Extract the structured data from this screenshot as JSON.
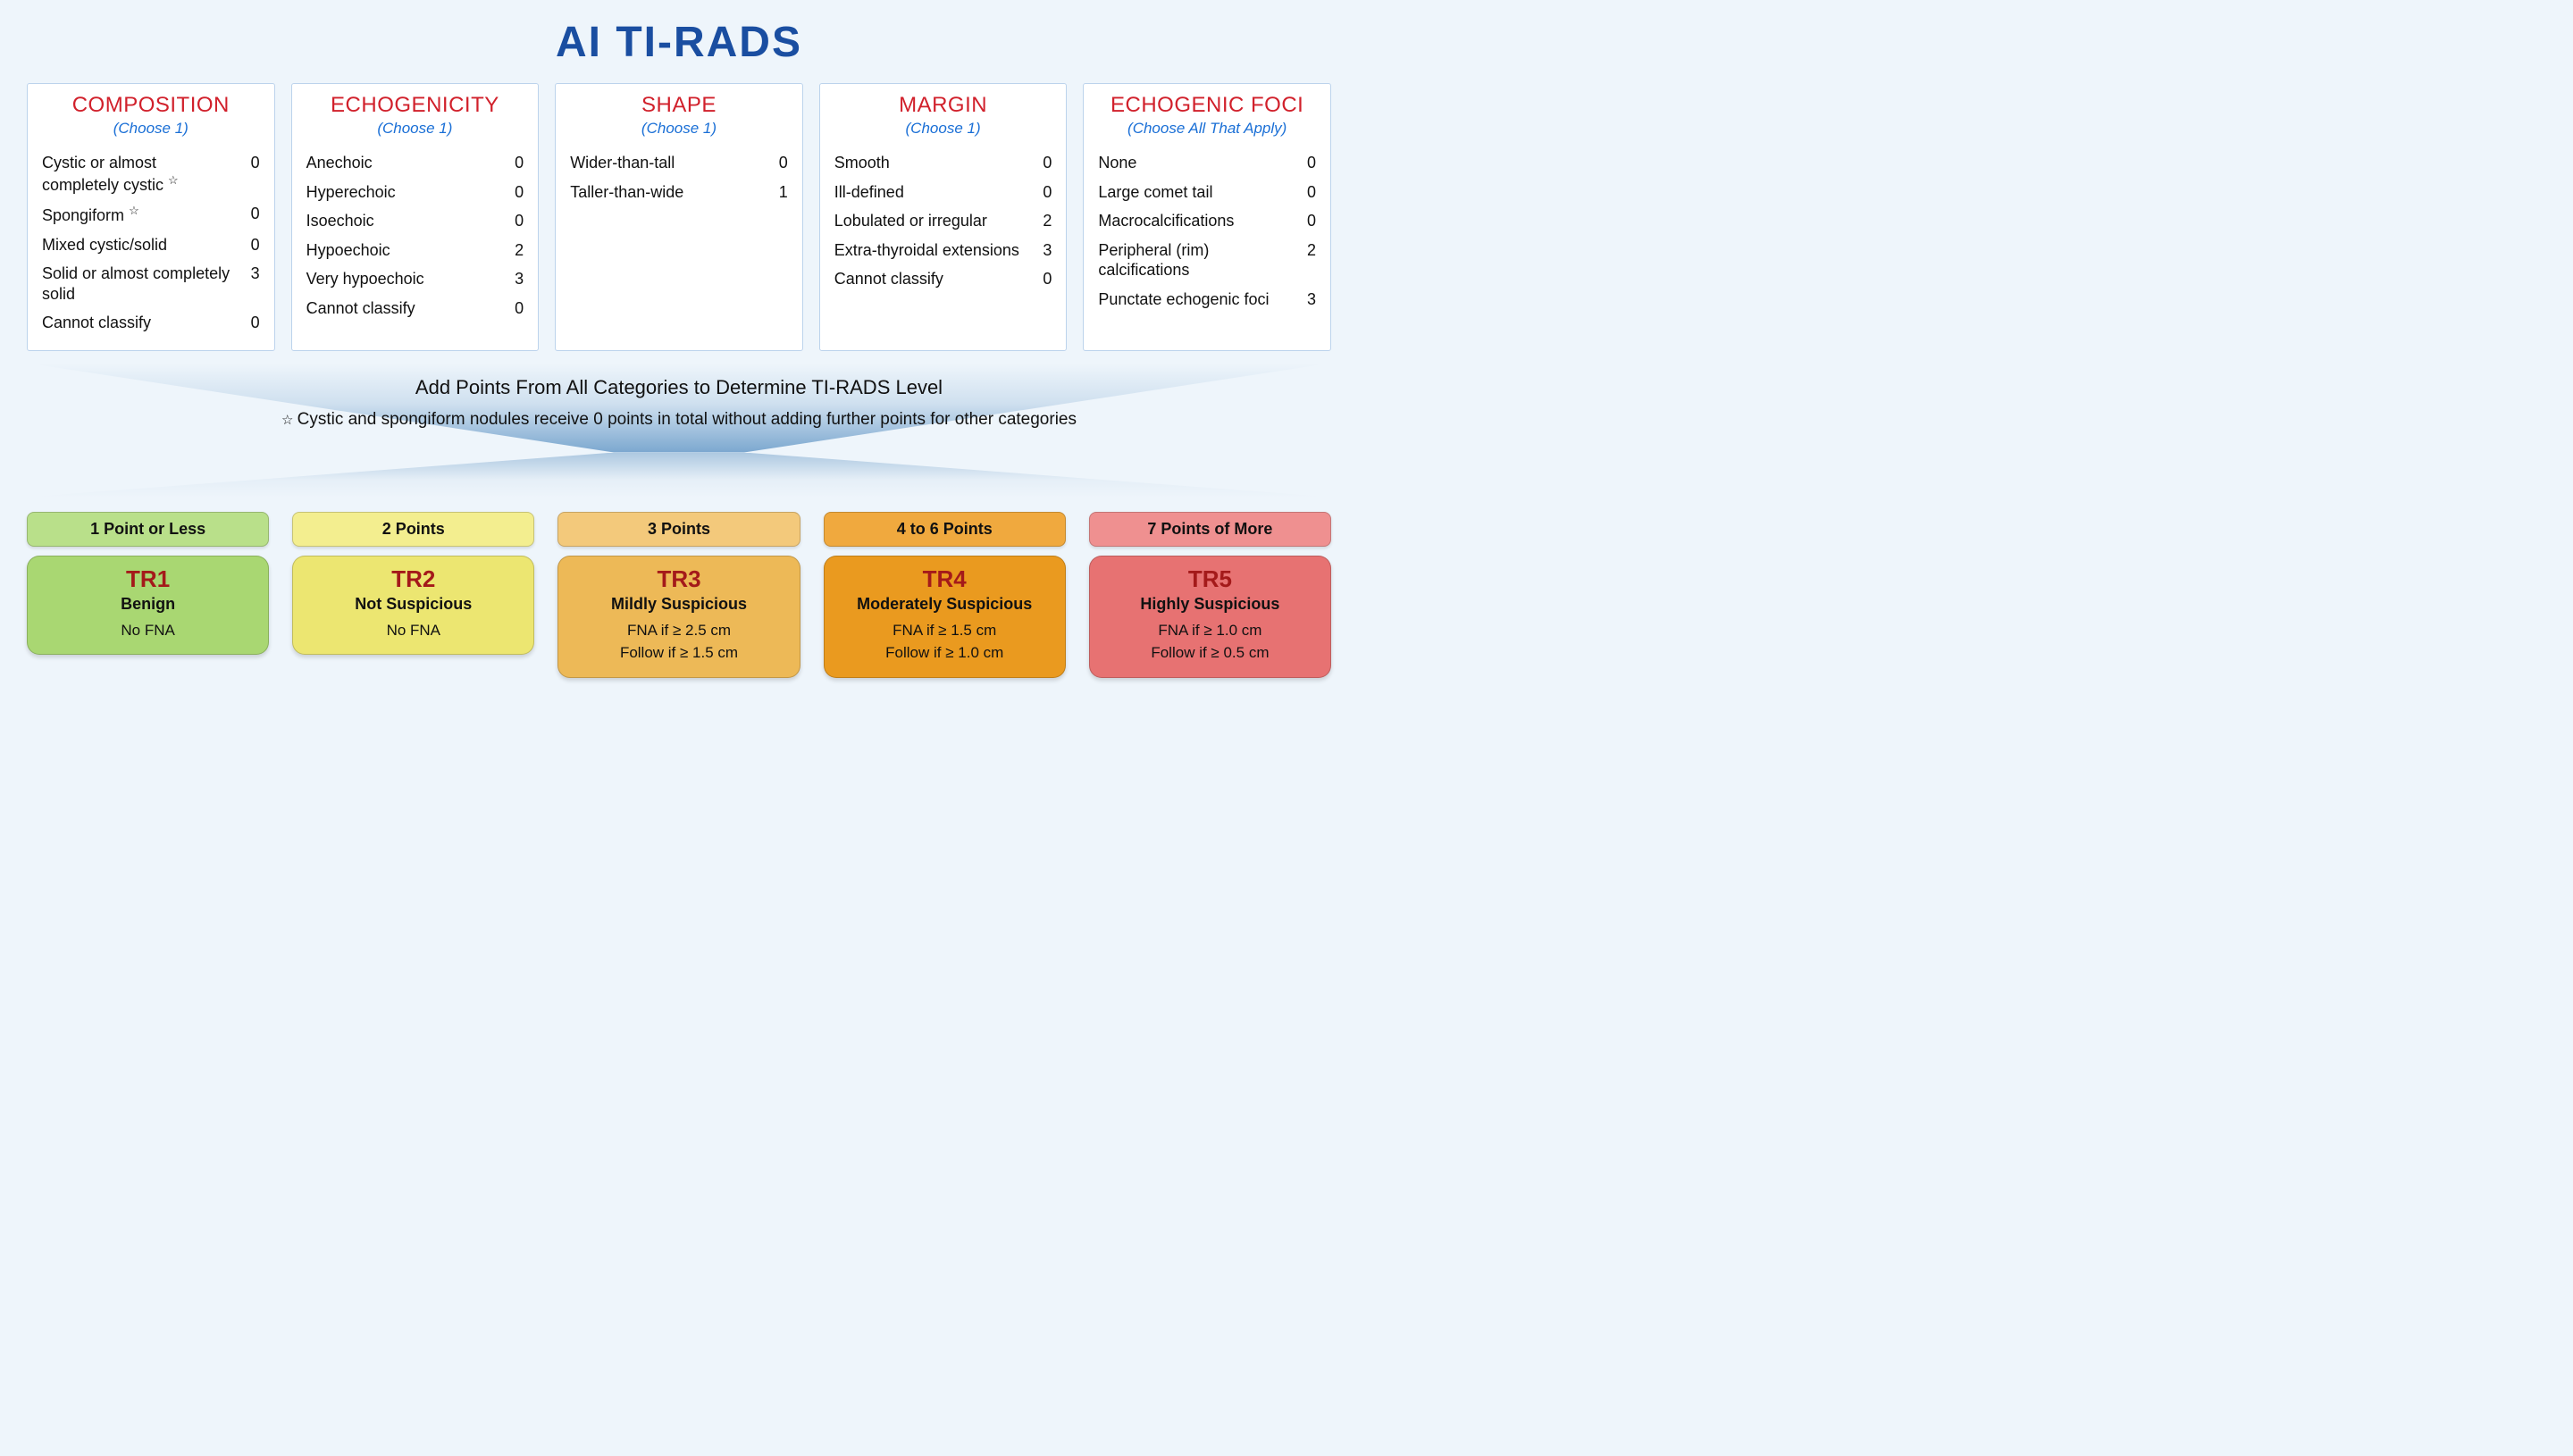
{
  "title": "AI TI-RADS",
  "colors": {
    "page_bg": "#eef5fb",
    "title_color": "#1a4ea1",
    "card_bg": "#ffffff",
    "card_border": "#bcd3ec",
    "card_title_color": "#d1202b",
    "card_sub_color": "#1a6fd6",
    "text_color": "#111111",
    "tr_code_color": "#a41a1a"
  },
  "cards": [
    {
      "title": "COMPOSITION",
      "sub": "(Choose 1)",
      "items": [
        {
          "label": "Cystic or almost completely cystic",
          "star": true,
          "pts": "0"
        },
        {
          "label": "Spongiform",
          "star": true,
          "pts": "0"
        },
        {
          "label": "Mixed cystic/solid",
          "star": false,
          "pts": "0"
        },
        {
          "label": "Solid or almost completely solid",
          "star": false,
          "pts": "3"
        },
        {
          "label": "Cannot classify",
          "star": false,
          "pts": "0"
        }
      ]
    },
    {
      "title": "ECHOGENICITY",
      "sub": "(Choose 1)",
      "items": [
        {
          "label": "Anechoic",
          "star": false,
          "pts": "0"
        },
        {
          "label": "Hyperechoic",
          "star": false,
          "pts": "0"
        },
        {
          "label": "Isoechoic",
          "star": false,
          "pts": "0"
        },
        {
          "label": "Hypoechoic",
          "star": false,
          "pts": "2"
        },
        {
          "label": "Very hypoechoic",
          "star": false,
          "pts": "3"
        },
        {
          "label": "Cannot classify",
          "star": false,
          "pts": "0"
        }
      ]
    },
    {
      "title": "SHAPE",
      "sub": "(Choose 1)",
      "items": [
        {
          "label": "Wider-than-tall",
          "star": false,
          "pts": "0"
        },
        {
          "label": "Taller-than-wide",
          "star": false,
          "pts": "1"
        }
      ]
    },
    {
      "title": "MARGIN",
      "sub": "(Choose 1)",
      "items": [
        {
          "label": "Smooth",
          "star": false,
          "pts": "0"
        },
        {
          "label": "Ill-defined",
          "star": false,
          "pts": "0"
        },
        {
          "label": "Lobulated or irregular",
          "star": false,
          "pts": "2"
        },
        {
          "label": "Extra-thyroidal extensions",
          "star": false,
          "pts": "3"
        },
        {
          "label": "Cannot classify",
          "star": false,
          "pts": "0"
        }
      ]
    },
    {
      "title": "ECHOGENIC FOCI",
      "sub": "(Choose All That Apply)",
      "items": [
        {
          "label": "None",
          "star": false,
          "pts": "0"
        },
        {
          "label": "Large comet tail",
          "star": false,
          "pts": "0"
        },
        {
          "label": "Macrocalcifications",
          "star": false,
          "pts": "0"
        },
        {
          "label": "Peripheral (rim) calcifications",
          "star": false,
          "pts": "2"
        },
        {
          "label": "Punctate echogenic foci",
          "star": false,
          "pts": "3"
        }
      ]
    }
  ],
  "funnel": {
    "headline": "Add Points From All Categories to Determine TI-RADS Level",
    "note_prefix": "☆ ",
    "note": "Cystic and spongiform nodules receive 0 points in total without adding further points for other categories"
  },
  "levels": [
    {
      "pill": "1 Point or Less",
      "code": "TR1",
      "label": "Benign",
      "lines": [
        "No FNA"
      ],
      "pill_bg": "#b9e08a",
      "card_bg": "#a9d772"
    },
    {
      "pill": "2 Points",
      "code": "TR2",
      "label": "Not Suspicious",
      "lines": [
        "No FNA"
      ],
      "pill_bg": "#f3ee8f",
      "card_bg": "#ece671"
    },
    {
      "pill": "3 Points",
      "code": "TR3",
      "label": "Mildly Suspicious",
      "lines": [
        "FNA if ≥ 2.5 cm",
        "Follow if ≥ 1.5 cm"
      ],
      "pill_bg": "#f3c97b",
      "card_bg": "#edb957"
    },
    {
      "pill": "4 to 6 Points",
      "code": "TR4",
      "label": "Moderately Suspicious",
      "lines": [
        "FNA if ≥ 1.5 cm",
        "Follow if ≥ 1.0 cm"
      ],
      "pill_bg": "#f0a93e",
      "card_bg": "#ea9a1f"
    },
    {
      "pill": "7 Points of More",
      "code": "TR5",
      "label": "Highly Suspicious",
      "lines": [
        "FNA if ≥ 1.0 cm",
        "Follow if ≥ 0.5 cm"
      ],
      "pill_bg": "#ef9090",
      "card_bg": "#e77272"
    }
  ]
}
